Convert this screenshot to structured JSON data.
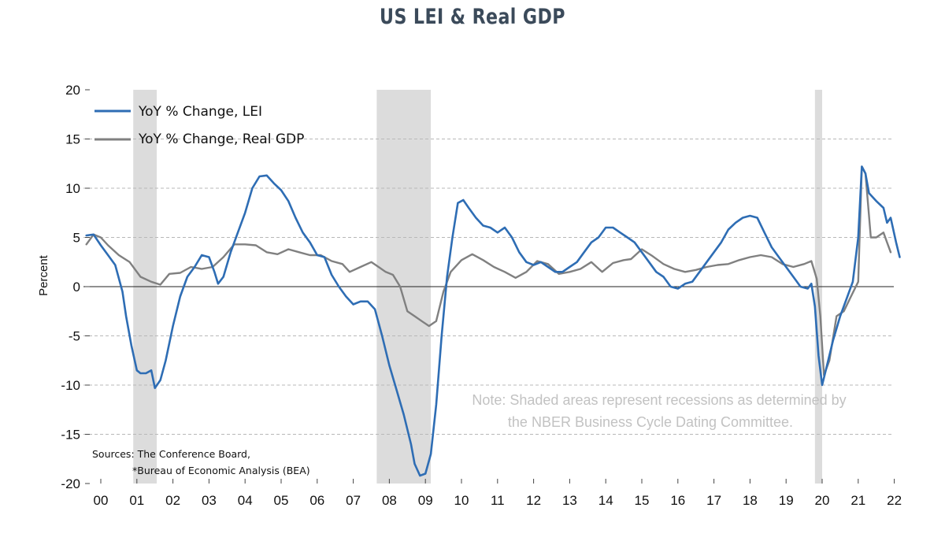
{
  "chart_data": {
    "type": "line",
    "title": "US LEI & Real GDP",
    "ylabel": "Percent",
    "xlabel": "",
    "ylim": [
      -20,
      20
    ],
    "yticks": [
      20,
      15,
      10,
      5,
      0,
      -5,
      -10,
      -15,
      -20
    ],
    "yticks_labels": [
      "20",
      "15",
      "10",
      "5",
      "0",
      "-5",
      "-10",
      "-15",
      "-20"
    ],
    "xlim": [
      1999.9,
      2022.2
    ],
    "xticks": [
      {
        "x": 2000.3,
        "label": "00"
      },
      {
        "x": 2001.3,
        "label": "01"
      },
      {
        "x": 2002.3,
        "label": "02"
      },
      {
        "x": 2003.3,
        "label": "03"
      },
      {
        "x": 2004.3,
        "label": "04"
      },
      {
        "x": 2005.3,
        "label": "05"
      },
      {
        "x": 2006.3,
        "label": "06"
      },
      {
        "x": 2007.3,
        "label": "07"
      },
      {
        "x": 2008.3,
        "label": "08"
      },
      {
        "x": 2009.3,
        "label": "09"
      },
      {
        "x": 2010.3,
        "label": "10"
      },
      {
        "x": 2011.3,
        "label": "11"
      },
      {
        "x": 2012.3,
        "label": "12"
      },
      {
        "x": 2013.3,
        "label": "13"
      },
      {
        "x": 2014.3,
        "label": "14"
      },
      {
        "x": 2015.3,
        "label": "15"
      },
      {
        "x": 2016.3,
        "label": "16"
      },
      {
        "x": 2017.3,
        "label": "17"
      },
      {
        "x": 2018.3,
        "label": "18"
      },
      {
        "x": 2019.3,
        "label": "19"
      },
      {
        "x": 2020.3,
        "label": "20"
      },
      {
        "x": 2021.3,
        "label": "21"
      },
      {
        "x": 2022.3,
        "label": "22"
      }
    ],
    "grid": true,
    "legend_position": "top-left",
    "recessions": [
      [
        2001.2,
        2001.85
      ],
      [
        2007.95,
        2009.45
      ],
      [
        2020.1,
        2020.3
      ]
    ],
    "series": [
      {
        "name": "YoY % Change, LEI",
        "color": "#2e6db4",
        "points": [
          [
            1999.9,
            5.2
          ],
          [
            2000.1,
            5.3
          ],
          [
            2000.3,
            4.2
          ],
          [
            2000.5,
            3.2
          ],
          [
            2000.7,
            2.2
          ],
          [
            2000.9,
            -0.5
          ],
          [
            2001.0,
            -3.0
          ],
          [
            2001.15,
            -6.0
          ],
          [
            2001.3,
            -8.5
          ],
          [
            2001.4,
            -8.8
          ],
          [
            2001.55,
            -8.8
          ],
          [
            2001.7,
            -8.5
          ],
          [
            2001.8,
            -10.3
          ],
          [
            2001.95,
            -9.5
          ],
          [
            2002.1,
            -7.5
          ],
          [
            2002.3,
            -4.0
          ],
          [
            2002.5,
            -1.0
          ],
          [
            2002.7,
            1.0
          ],
          [
            2002.9,
            2.0
          ],
          [
            2003.1,
            3.2
          ],
          [
            2003.3,
            3.0
          ],
          [
            2003.45,
            1.5
          ],
          [
            2003.55,
            0.3
          ],
          [
            2003.7,
            1.0
          ],
          [
            2003.9,
            3.5
          ],
          [
            2004.1,
            5.5
          ],
          [
            2004.3,
            7.5
          ],
          [
            2004.5,
            10.0
          ],
          [
            2004.7,
            11.2
          ],
          [
            2004.9,
            11.3
          ],
          [
            2005.1,
            10.5
          ],
          [
            2005.3,
            9.8
          ],
          [
            2005.5,
            8.7
          ],
          [
            2005.7,
            7.0
          ],
          [
            2005.9,
            5.5
          ],
          [
            2006.1,
            4.5
          ],
          [
            2006.3,
            3.2
          ],
          [
            2006.5,
            3.0
          ],
          [
            2006.7,
            1.2
          ],
          [
            2006.9,
            0.0
          ],
          [
            2007.1,
            -1.0
          ],
          [
            2007.3,
            -1.8
          ],
          [
            2007.5,
            -1.5
          ],
          [
            2007.7,
            -1.5
          ],
          [
            2007.9,
            -2.3
          ],
          [
            2008.1,
            -5.0
          ],
          [
            2008.3,
            -8.0
          ],
          [
            2008.5,
            -10.5
          ],
          [
            2008.7,
            -13.0
          ],
          [
            2008.9,
            -16.0
          ],
          [
            2009.0,
            -18.0
          ],
          [
            2009.15,
            -19.2
          ],
          [
            2009.3,
            -19.0
          ],
          [
            2009.45,
            -17.0
          ],
          [
            2009.6,
            -12.0
          ],
          [
            2009.75,
            -5.0
          ],
          [
            2009.9,
            1.0
          ],
          [
            2010.05,
            5.0
          ],
          [
            2010.2,
            8.5
          ],
          [
            2010.35,
            8.8
          ],
          [
            2010.5,
            8.0
          ],
          [
            2010.7,
            7.0
          ],
          [
            2010.9,
            6.2
          ],
          [
            2011.1,
            6.0
          ],
          [
            2011.3,
            5.5
          ],
          [
            2011.5,
            6.0
          ],
          [
            2011.7,
            5.0
          ],
          [
            2011.9,
            3.5
          ],
          [
            2012.1,
            2.5
          ],
          [
            2012.3,
            2.2
          ],
          [
            2012.5,
            2.5
          ],
          [
            2012.7,
            2.0
          ],
          [
            2012.9,
            1.5
          ],
          [
            2013.1,
            1.5
          ],
          [
            2013.3,
            2.0
          ],
          [
            2013.5,
            2.5
          ],
          [
            2013.7,
            3.5
          ],
          [
            2013.9,
            4.5
          ],
          [
            2014.1,
            5.0
          ],
          [
            2014.3,
            6.0
          ],
          [
            2014.5,
            6.0
          ],
          [
            2014.7,
            5.5
          ],
          [
            2014.9,
            5.0
          ],
          [
            2015.1,
            4.5
          ],
          [
            2015.3,
            3.5
          ],
          [
            2015.5,
            2.5
          ],
          [
            2015.7,
            1.5
          ],
          [
            2015.9,
            1.0
          ],
          [
            2016.1,
            0.0
          ],
          [
            2016.3,
            -0.2
          ],
          [
            2016.5,
            0.3
          ],
          [
            2016.7,
            0.5
          ],
          [
            2016.9,
            1.5
          ],
          [
            2017.1,
            2.5
          ],
          [
            2017.3,
            3.5
          ],
          [
            2017.5,
            4.5
          ],
          [
            2017.7,
            5.8
          ],
          [
            2017.9,
            6.5
          ],
          [
            2018.1,
            7.0
          ],
          [
            2018.3,
            7.2
          ],
          [
            2018.5,
            7.0
          ],
          [
            2018.7,
            5.5
          ],
          [
            2018.9,
            4.0
          ],
          [
            2019.1,
            3.0
          ],
          [
            2019.3,
            2.0
          ],
          [
            2019.5,
            1.0
          ],
          [
            2019.7,
            0.0
          ],
          [
            2019.9,
            -0.2
          ],
          [
            2020.0,
            0.3
          ],
          [
            2020.1,
            -2.0
          ],
          [
            2020.2,
            -7.0
          ],
          [
            2020.3,
            -10.0
          ],
          [
            2020.4,
            -8.5
          ],
          [
            2020.6,
            -5.5
          ],
          [
            2020.8,
            -3.0
          ],
          [
            2021.0,
            -1.0
          ],
          [
            2021.15,
            0.5
          ],
          [
            2021.3,
            5.0
          ],
          [
            2021.4,
            12.2
          ],
          [
            2021.5,
            11.5
          ],
          [
            2021.6,
            9.5
          ],
          [
            2021.8,
            8.7
          ],
          [
            2022.0,
            8.0
          ],
          [
            2022.1,
            6.5
          ],
          [
            2022.2,
            7.0
          ],
          [
            2022.35,
            4.5
          ],
          [
            2022.45,
            3.0
          ]
        ]
      },
      {
        "name": "YoY % Change, Real GDP",
        "color": "#808080",
        "points": [
          [
            1999.9,
            4.3
          ],
          [
            2000.1,
            5.3
          ],
          [
            2000.3,
            5.0
          ],
          [
            2000.5,
            4.2
          ],
          [
            2000.8,
            3.2
          ],
          [
            2001.1,
            2.5
          ],
          [
            2001.4,
            1.0
          ],
          [
            2001.7,
            0.5
          ],
          [
            2001.95,
            0.2
          ],
          [
            2002.2,
            1.3
          ],
          [
            2002.5,
            1.4
          ],
          [
            2002.8,
            2.0
          ],
          [
            2003.1,
            1.8
          ],
          [
            2003.4,
            2.0
          ],
          [
            2003.7,
            3.0
          ],
          [
            2004.0,
            4.3
          ],
          [
            2004.3,
            4.3
          ],
          [
            2004.6,
            4.2
          ],
          [
            2004.9,
            3.5
          ],
          [
            2005.2,
            3.3
          ],
          [
            2005.5,
            3.8
          ],
          [
            2005.8,
            3.5
          ],
          [
            2006.1,
            3.2
          ],
          [
            2006.4,
            3.2
          ],
          [
            2006.7,
            2.6
          ],
          [
            2007.0,
            2.3
          ],
          [
            2007.2,
            1.5
          ],
          [
            2007.5,
            2.0
          ],
          [
            2007.8,
            2.5
          ],
          [
            2008.0,
            2.0
          ],
          [
            2008.2,
            1.5
          ],
          [
            2008.4,
            1.2
          ],
          [
            2008.6,
            0.0
          ],
          [
            2008.8,
            -2.5
          ],
          [
            2009.0,
            -3.0
          ],
          [
            2009.2,
            -3.5
          ],
          [
            2009.4,
            -4.0
          ],
          [
            2009.6,
            -3.5
          ],
          [
            2009.8,
            -0.5
          ],
          [
            2010.0,
            1.5
          ],
          [
            2010.3,
            2.7
          ],
          [
            2010.6,
            3.3
          ],
          [
            2010.9,
            2.7
          ],
          [
            2011.2,
            2.0
          ],
          [
            2011.5,
            1.5
          ],
          [
            2011.8,
            0.9
          ],
          [
            2012.1,
            1.5
          ],
          [
            2012.4,
            2.6
          ],
          [
            2012.7,
            2.3
          ],
          [
            2013.0,
            1.3
          ],
          [
            2013.3,
            1.5
          ],
          [
            2013.6,
            1.8
          ],
          [
            2013.9,
            2.5
          ],
          [
            2014.2,
            1.5
          ],
          [
            2014.5,
            2.4
          ],
          [
            2014.8,
            2.7
          ],
          [
            2015.0,
            2.8
          ],
          [
            2015.3,
            3.8
          ],
          [
            2015.6,
            3.1
          ],
          [
            2015.9,
            2.3
          ],
          [
            2016.2,
            1.8
          ],
          [
            2016.5,
            1.5
          ],
          [
            2016.8,
            1.7
          ],
          [
            2017.1,
            2.0
          ],
          [
            2017.4,
            2.2
          ],
          [
            2017.7,
            2.3
          ],
          [
            2018.0,
            2.7
          ],
          [
            2018.3,
            3.0
          ],
          [
            2018.6,
            3.2
          ],
          [
            2018.9,
            3.0
          ],
          [
            2019.2,
            2.3
          ],
          [
            2019.5,
            2.0
          ],
          [
            2019.8,
            2.3
          ],
          [
            2020.0,
            2.6
          ],
          [
            2020.15,
            0.8
          ],
          [
            2020.25,
            -3.0
          ],
          [
            2020.35,
            -9.0
          ],
          [
            2020.5,
            -7.5
          ],
          [
            2020.7,
            -3.0
          ],
          [
            2020.9,
            -2.5
          ],
          [
            2021.1,
            -1.0
          ],
          [
            2021.3,
            0.5
          ],
          [
            2021.4,
            12.2
          ],
          [
            2021.5,
            11.5
          ],
          [
            2021.65,
            5.0
          ],
          [
            2021.8,
            5.0
          ],
          [
            2022.0,
            5.5
          ],
          [
            2022.1,
            4.5
          ],
          [
            2022.2,
            3.5
          ]
        ]
      }
    ],
    "annotations": [
      {
        "text": "Note: Shaded areas represent recessions as determined by"
      },
      {
        "text": "the NBER Business Cycle Dating Committee."
      },
      {
        "text": "Sources: The Conference Board,"
      },
      {
        "text": "*Bureau of Economic Analysis (BEA)"
      }
    ]
  }
}
